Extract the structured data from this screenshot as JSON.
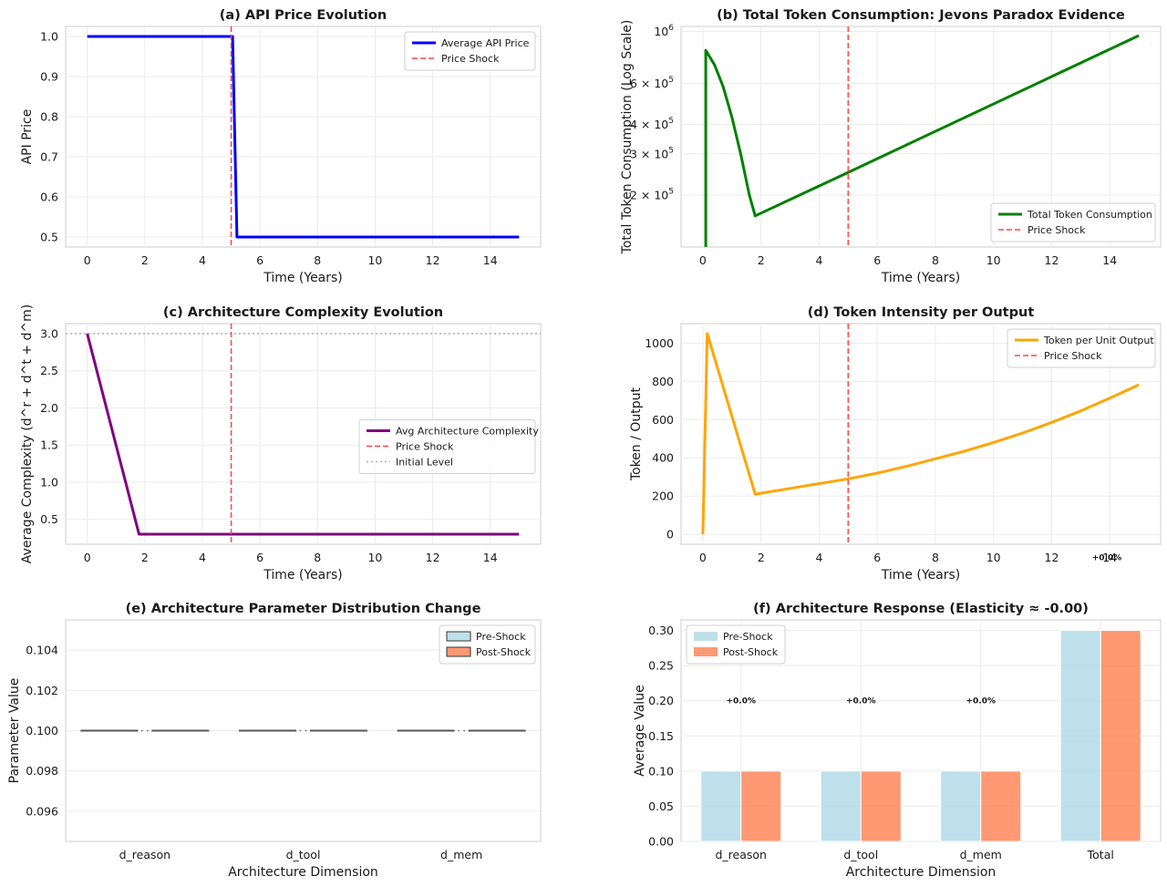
{
  "chart_data": [
    {
      "id": "a",
      "type": "line",
      "title": "(a) API Price Evolution",
      "xlabel": "Time (Years)",
      "ylabel": "API Price",
      "xlim": [
        -0.75,
        15.75
      ],
      "ylim": [
        0.475,
        1.025
      ],
      "xticks": [
        0,
        2,
        4,
        6,
        8,
        10,
        12,
        14
      ],
      "yticks": [
        0.5,
        0.6,
        0.7,
        0.8,
        0.9,
        1.0
      ],
      "ytick_labels": [
        "0.5",
        "0.6",
        "0.7",
        "0.8",
        "0.9",
        "1.0"
      ],
      "grid": true,
      "legend": "upper right",
      "series": [
        {
          "name": "Average API Price",
          "color": "#0000ff",
          "x": [
            0,
            5.05,
            5.2,
            15
          ],
          "y": [
            1.0,
            1.0,
            0.5,
            0.5
          ]
        }
      ],
      "vlines": [
        {
          "name": "Price Shock",
          "x": 5,
          "color": "#ff4444",
          "style": "dashed"
        }
      ]
    },
    {
      "id": "b",
      "type": "line",
      "title": "(b) Total Token Consumption: Jevons Paradox Evidence",
      "xlabel": "Time (Years)",
      "ylabel": "Total Token Consumption (Log Scale)",
      "xlim": [
        -0.75,
        15.75
      ],
      "ylim": [
        120000,
        1050000
      ],
      "yscale": "log",
      "xticks": [
        0,
        2,
        4,
        6,
        8,
        10,
        12,
        14
      ],
      "yticks": [
        200000,
        300000,
        400000,
        600000,
        1000000
      ],
      "ytick_labels": [
        {
          "base": "2 × 10",
          "exp": "5"
        },
        {
          "base": "3 × 10",
          "exp": "5"
        },
        {
          "base": "4 × 10",
          "exp": "5"
        },
        {
          "base": "6 × 10",
          "exp": "5"
        },
        {
          "base": "10",
          "exp": "6"
        }
      ],
      "grid": true,
      "legend": "lower right",
      "series": [
        {
          "name": "Total Token Consumption",
          "color": "#008000",
          "x": [
            0.1,
            0.1,
            0.4,
            0.7,
            1.0,
            1.3,
            1.6,
            1.8,
            5,
            15
          ],
          "y": [
            120000,
            830000,
            720000,
            580000,
            430000,
            300000,
            200000,
            163000,
            250000,
            960000
          ]
        }
      ],
      "vlines": [
        {
          "name": "Price Shock",
          "x": 5,
          "color": "#ff4444",
          "style": "dashed"
        }
      ]
    },
    {
      "id": "c",
      "type": "line",
      "title": "(c) Architecture Complexity Evolution",
      "xlabel": "Time (Years)",
      "ylabel": "Average Complexity (d^r + d^t + d^m)",
      "xlim": [
        -0.75,
        15.75
      ],
      "ylim": [
        0.165,
        3.135
      ],
      "xticks": [
        0,
        2,
        4,
        6,
        8,
        10,
        12,
        14
      ],
      "yticks": [
        0.5,
        1.0,
        1.5,
        2.0,
        2.5,
        3.0
      ],
      "ytick_labels": [
        "0.5",
        "1.0",
        "1.5",
        "2.0",
        "2.5",
        "3.0"
      ],
      "grid": true,
      "legend": "center right",
      "series": [
        {
          "name": "Avg Architecture Complexity",
          "color": "#800080",
          "x": [
            0,
            1.8,
            15
          ],
          "y": [
            3.0,
            0.3,
            0.3
          ]
        }
      ],
      "vlines": [
        {
          "name": "Price Shock",
          "x": 5,
          "color": "#ff4444",
          "style": "dashed"
        }
      ],
      "hlines": [
        {
          "name": "Initial Level",
          "y": 3.0,
          "color": "#b0b0b0",
          "style": "dotted"
        }
      ]
    },
    {
      "id": "d",
      "type": "line",
      "title": "(d) Token Intensity per Output",
      "xlabel": "Time (Years)",
      "ylabel": "Token / Output",
      "xlim": [
        -0.75,
        15.75
      ],
      "ylim": [
        -52,
        1102
      ],
      "xticks": [
        0,
        2,
        4,
        6,
        8,
        10,
        12,
        14
      ],
      "yticks": [
        0,
        200,
        400,
        600,
        800,
        1000
      ],
      "ytick_labels": [
        "0",
        "200",
        "400",
        "600",
        "800",
        "1000"
      ],
      "grid": true,
      "legend": "upper right",
      "series": [
        {
          "name": "Token per Unit Output",
          "color": "#ffa500",
          "x": [
            0,
            0.15,
            1.8,
            3,
            4,
            5,
            6,
            7,
            8,
            9,
            10,
            11,
            12,
            13,
            14,
            15
          ],
          "y": [
            0,
            1050,
            210,
            240,
            265,
            290,
            320,
            355,
            395,
            435,
            480,
            530,
            585,
            645,
            712,
            782
          ]
        }
      ],
      "vlines": [
        {
          "name": "Price Shock",
          "x": 5,
          "color": "#ff4444",
          "style": "dashed"
        }
      ],
      "annotations": [
        {
          "text": "+0.0%",
          "x": 13.9,
          "y": -120
        }
      ]
    },
    {
      "id": "e",
      "type": "box",
      "title": "(e) Architecture Parameter Distribution Change",
      "xlabel": "Architecture Dimension",
      "ylabel": "Parameter Value",
      "categories": [
        "d_reason",
        "d_tool",
        "d_mem"
      ],
      "ylim": [
        0.0945,
        0.1055
      ],
      "yticks": [
        0.096,
        0.098,
        0.1,
        0.102,
        0.104
      ],
      "ytick_labels": [
        "0.096",
        "0.098",
        "0.100",
        "0.102",
        "0.104"
      ],
      "grid": true,
      "legend": "upper right",
      "series": [
        {
          "name": "Pre-Shock",
          "color": "#add8e6",
          "values": [
            0.1,
            0.1,
            0.1
          ]
        },
        {
          "name": "Post-Shock",
          "color": "#ff7f50",
          "values": [
            0.1,
            0.1,
            0.1
          ]
        }
      ]
    },
    {
      "id": "f",
      "type": "bar",
      "title": "(f) Architecture Response (Elasticity ≈ -0.00)",
      "xlabel": "Architecture Dimension",
      "ylabel": "Average Value",
      "categories": [
        "d_reason",
        "d_tool",
        "d_mem",
        "Total"
      ],
      "ylim": [
        0,
        0.315
      ],
      "yticks": [
        0.0,
        0.05,
        0.1,
        0.15,
        0.2,
        0.25,
        0.3
      ],
      "ytick_labels": [
        "0.00",
        "0.05",
        "0.10",
        "0.15",
        "0.20",
        "0.25",
        "0.30"
      ],
      "grid": true,
      "legend": "upper left",
      "series": [
        {
          "name": "Pre-Shock",
          "color": "#add8e6",
          "values": [
            0.1,
            0.1,
            0.1,
            0.3
          ]
        },
        {
          "name": "Post-Shock",
          "color": "#ff7f50",
          "values": [
            0.1,
            0.1,
            0.1,
            0.3
          ]
        }
      ],
      "annotations": [
        {
          "text": "+0.0%",
          "category": 0,
          "y": 0.2
        },
        {
          "text": "+0.0%",
          "category": 1,
          "y": 0.2
        },
        {
          "text": "+0.0%",
          "category": 2,
          "y": 0.2
        }
      ]
    }
  ]
}
